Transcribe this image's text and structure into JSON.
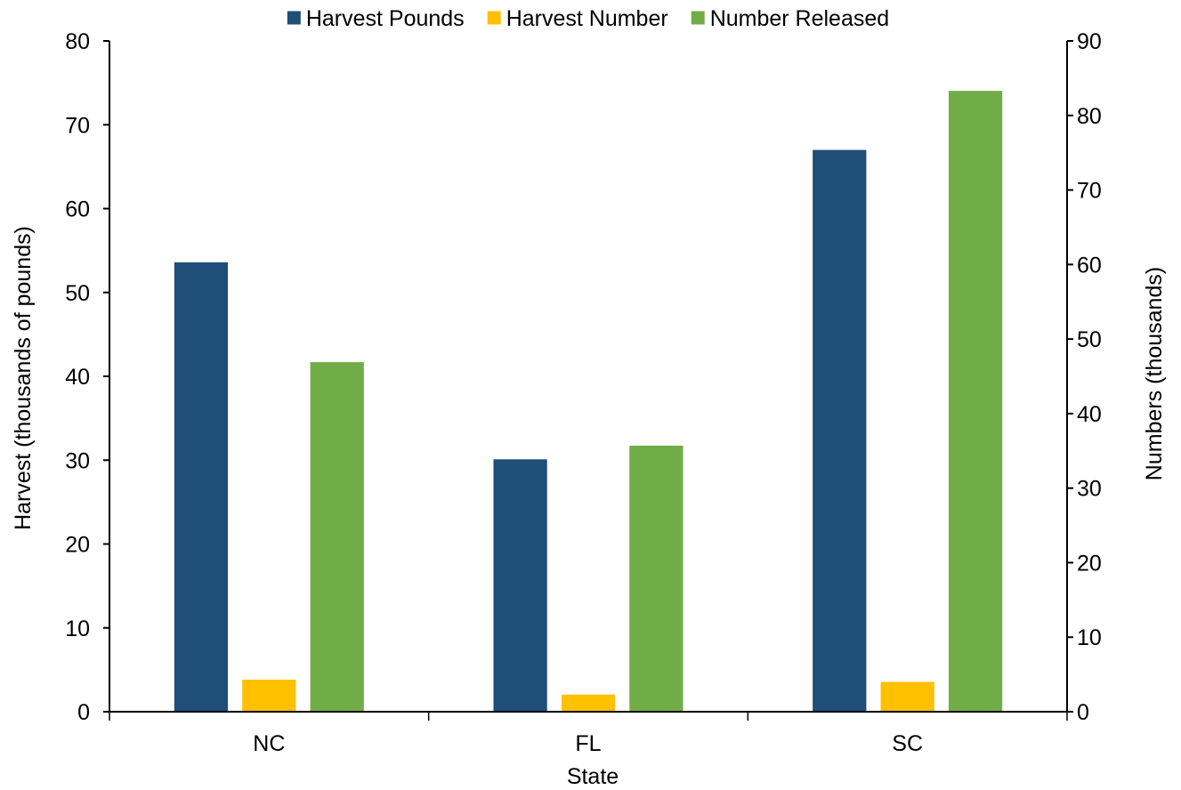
{
  "chart_data": {
    "type": "bar",
    "categories": [
      "NC",
      "FL",
      "SC"
    ],
    "series": [
      {
        "name": "Harvest Pounds",
        "axis": "left",
        "color": "#1F4E79",
        "values": [
          53.6,
          30.1,
          67.0
        ]
      },
      {
        "name": "Harvest Number",
        "axis": "right",
        "color": "#FFC000",
        "values": [
          4.3,
          2.3,
          4.0
        ]
      },
      {
        "name": "Number Released",
        "axis": "right",
        "color": "#70AD47",
        "values": [
          46.9,
          35.7,
          83.3
        ]
      }
    ],
    "xlabel": "State",
    "ylabel": "Harvest (thousands of pounds)",
    "y2label": "Numbers (thousands)",
    "ylim": [
      0,
      80
    ],
    "y2lim": [
      0,
      90
    ],
    "yticks": [
      "0",
      "10",
      "20",
      "30",
      "40",
      "50",
      "60",
      "70",
      "80"
    ],
    "y2ticks": [
      "0",
      "10",
      "20",
      "30",
      "40",
      "50",
      "60",
      "70",
      "80",
      "90"
    ],
    "legend_position": "top-center",
    "grid": false
  }
}
